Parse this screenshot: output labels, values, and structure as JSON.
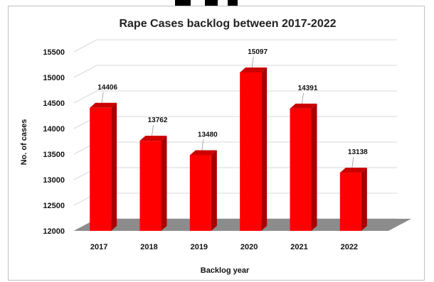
{
  "chart_data": {
    "type": "bar",
    "title": "Rape Cases backlog between 2017-2022",
    "xlabel": "Backlog year",
    "ylabel": "No. of cases",
    "categories": [
      "2017",
      "2018",
      "2019",
      "2020",
      "2021",
      "2022"
    ],
    "values": [
      14406,
      13762,
      13480,
      15097,
      14391,
      13138
    ],
    "ylim": [
      12000,
      15500
    ],
    "yticks": [
      12000,
      12500,
      13000,
      13500,
      14000,
      14500,
      15000,
      15500
    ],
    "data_labels": true,
    "style": "3d-column",
    "grid": "horizontal",
    "colors": {
      "bar_front": "#ff0000",
      "bar_side": "#a80000",
      "bar_top": "#cc0000",
      "floor": "#8c8c8c",
      "grid": "#d9d9d9"
    }
  }
}
